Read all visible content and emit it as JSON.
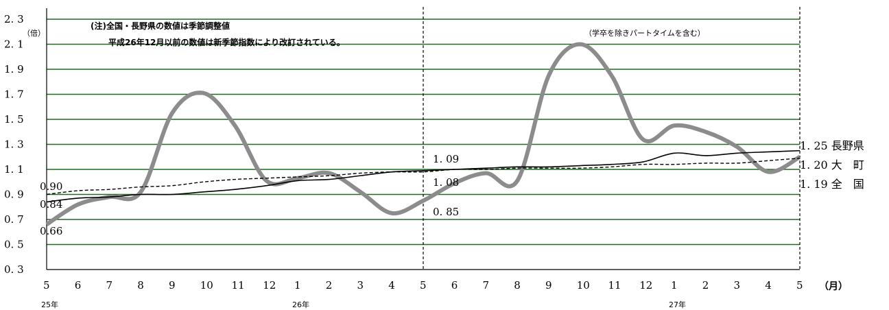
{
  "chart_data": {
    "type": "line",
    "unit_label": "（倍）",
    "month_unit_label": "（月）",
    "notes": [
      "(注)全国・長野県の数値は季節調整値",
      "平成26年12月以前の数値は新季節指数により改訂されている。"
    ],
    "subtitle": "（学卒を除きパートタイムを含む）",
    "ylim": [
      0.3,
      2.3
    ],
    "yticks": [
      "0.3",
      "0.5",
      "0.7",
      "0.9",
      "1.1",
      "1.3",
      "1.5",
      "1.7",
      "1.9",
      "2.1",
      "2.3"
    ],
    "ytick_labels": [
      "0. 3",
      "0. 5",
      "0. 7",
      "0. 9",
      "1. 1",
      "1. 3",
      "1. 5",
      "1. 7",
      "1. 9",
      "2. 1",
      "2. 3"
    ],
    "x": [
      "5",
      "6",
      "7",
      "8",
      "9",
      "10",
      "11",
      "12",
      "1",
      "2",
      "3",
      "4",
      "5",
      "6",
      "7",
      "8",
      "9",
      "10",
      "11",
      "12",
      "1",
      "2",
      "3",
      "4",
      "5"
    ],
    "x_labels": [
      "5",
      "6",
      "7",
      "8",
      "9",
      "10",
      "11",
      "12",
      "1",
      "2",
      "3",
      "4",
      "5",
      "6",
      "7",
      "8",
      "9",
      "10",
      "11",
      "12",
      "1",
      "2",
      "3",
      "4",
      "5"
    ],
    "year_labels": [
      {
        "index": 0,
        "text": "25年"
      },
      {
        "index": 8,
        "text": "26年"
      },
      {
        "index": 20,
        "text": "27年"
      }
    ],
    "dividers": [
      12,
      24
    ],
    "series": [
      {
        "name": "大町",
        "style": "thick-gray",
        "color": "#8c8c8c",
        "values": [
          0.66,
          0.82,
          0.88,
          0.92,
          1.55,
          1.71,
          1.45,
          1.01,
          1.03,
          1.07,
          0.92,
          0.75,
          0.85,
          0.99,
          1.07,
          1.01,
          1.85,
          2.1,
          1.85,
          1.34,
          1.45,
          1.4,
          1.28,
          1.08,
          1.2
        ]
      },
      {
        "name": "長野県",
        "style": "solid",
        "color": "#000000",
        "values": [
          0.84,
          0.87,
          0.88,
          0.9,
          0.9,
          0.92,
          0.94,
          0.97,
          1.01,
          1.02,
          1.05,
          1.08,
          1.09,
          1.1,
          1.11,
          1.12,
          1.12,
          1.13,
          1.14,
          1.16,
          1.23,
          1.21,
          1.23,
          1.24,
          1.25
        ]
      },
      {
        "name": "全国",
        "style": "dashed",
        "color": "#000000",
        "values": [
          0.9,
          0.93,
          0.94,
          0.96,
          0.97,
          1.0,
          1.02,
          1.03,
          1.04,
          1.05,
          1.07,
          1.08,
          1.08,
          1.1,
          1.1,
          1.11,
          1.11,
          1.11,
          1.12,
          1.14,
          1.14,
          1.15,
          1.15,
          1.17,
          1.19
        ]
      }
    ],
    "data_labels": [
      {
        "text": "0.90",
        "index": 0,
        "value": 0.9
      },
      {
        "text": "0.84",
        "index": 0,
        "value": 0.84
      },
      {
        "text": "0.66",
        "index": 0,
        "value": 0.66
      },
      {
        "text": "1. 09",
        "index": 12,
        "value": 1.09
      },
      {
        "text": "1. 08",
        "index": 12,
        "value": 1.08
      },
      {
        "text": "0. 85",
        "index": 12,
        "value": 0.85
      }
    ],
    "end_labels": [
      {
        "text": "1. 25 長野県",
        "value": 1.25
      },
      {
        "text": "1. 20 大　町",
        "value": 1.2
      },
      {
        "text": "1. 19 全　国",
        "value": 1.19
      }
    ],
    "grid": true
  }
}
